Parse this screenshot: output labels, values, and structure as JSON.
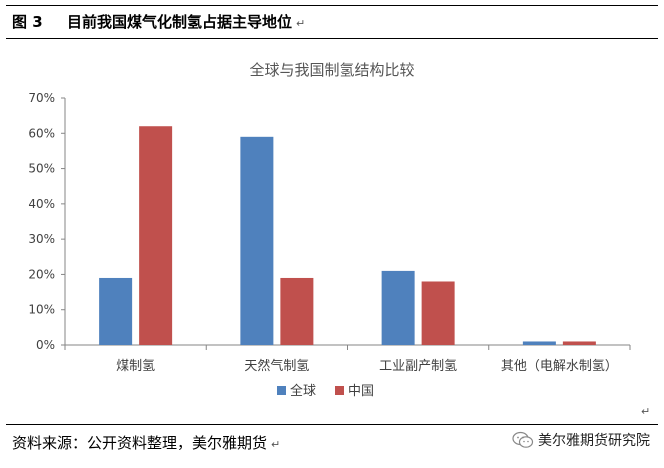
{
  "figure": {
    "label": "图 3",
    "caption": "目前我国煤气化制氢占据主导地位",
    "para_mark": "↵"
  },
  "chart_data": {
    "type": "bar",
    "title": "全球与我国制氢结构比较",
    "categories": [
      "煤制氢",
      "天然气制氢",
      "工业副产制氢",
      "其他（电解水制氢）"
    ],
    "series": [
      {
        "name": "全球",
        "values": [
          19,
          59,
          21,
          1
        ],
        "color": "#4f81bd"
      },
      {
        "name": "中国",
        "values": [
          62,
          19,
          18,
          1
        ],
        "color": "#c0504d"
      }
    ],
    "ylim": [
      0,
      70
    ],
    "yticks": [
      "0%",
      "10%",
      "20%",
      "30%",
      "40%",
      "50%",
      "60%",
      "70%"
    ],
    "value_unit": "%",
    "grid": false,
    "legend_position": "bottom"
  },
  "footer": {
    "source": "资料来源：公开资料整理，美尔雅期货",
    "brand": "美尔雅期货研究院",
    "brand_icon": "wechat-icon"
  }
}
